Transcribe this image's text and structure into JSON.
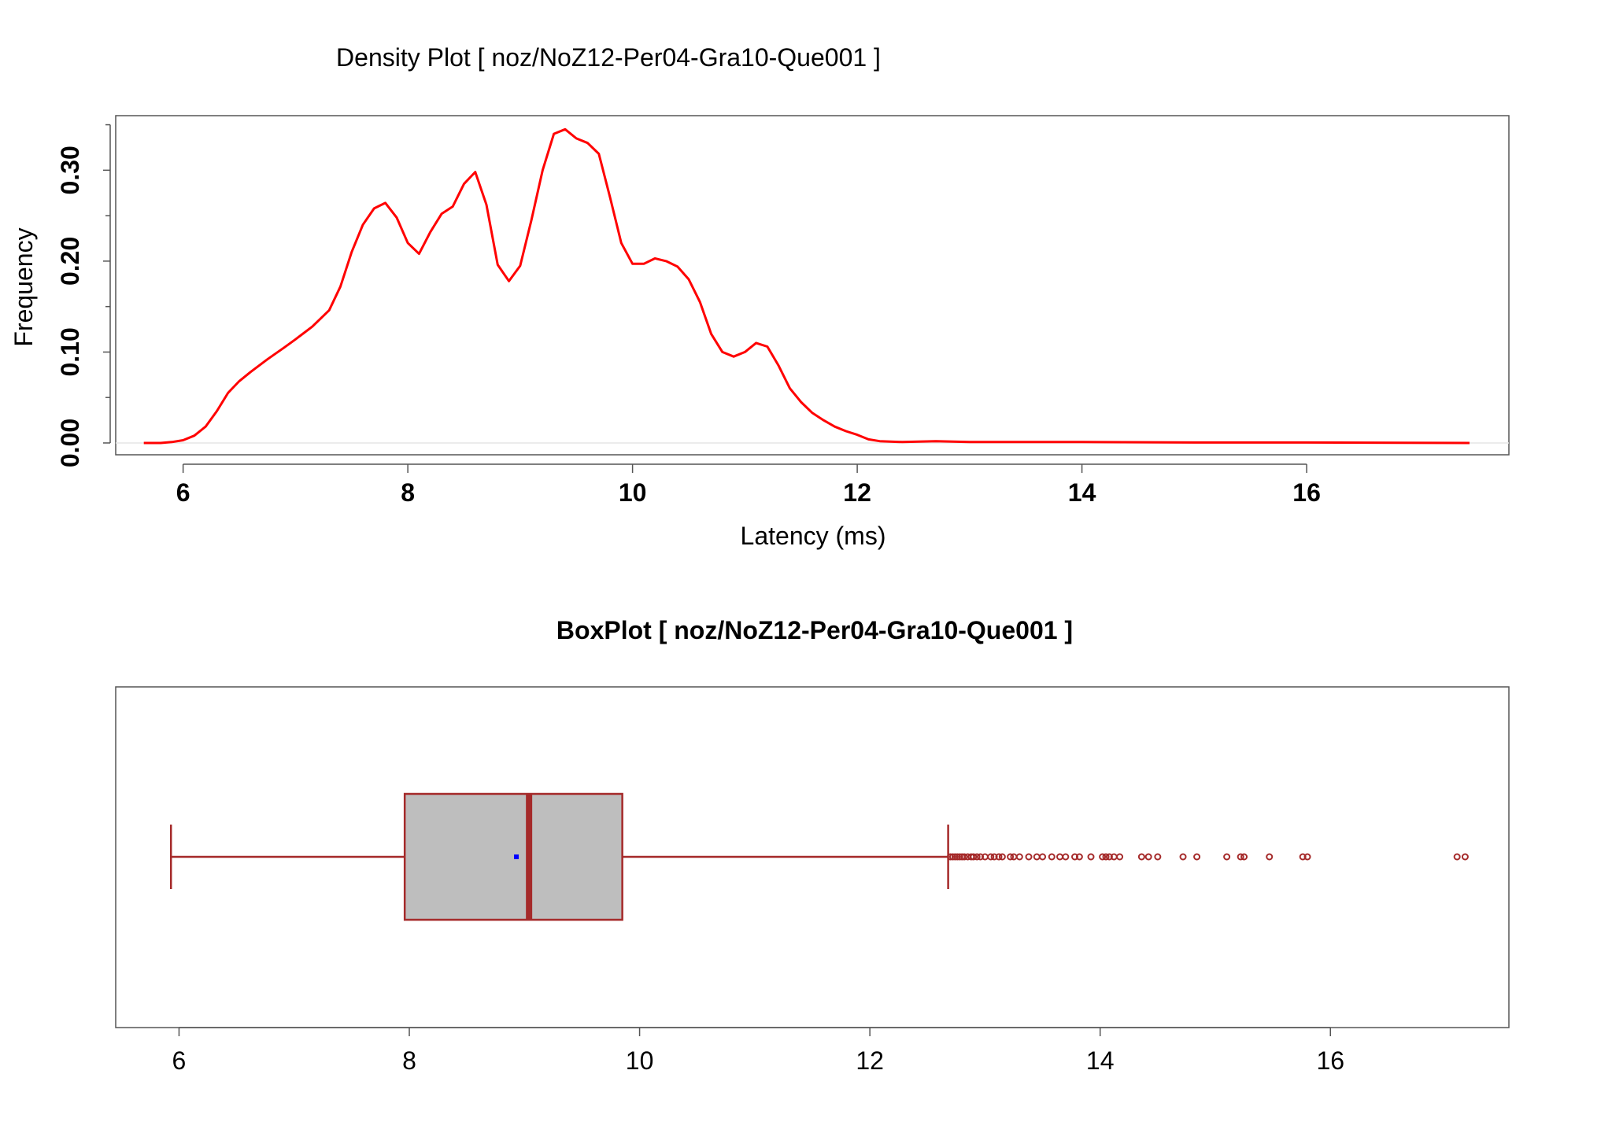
{
  "colors": {
    "density_line": "#ff0000",
    "box_border": "#a52a2a",
    "box_fill": "#bebebe",
    "mean_marker": "#0000ff",
    "outlier": "#a52a2a",
    "frame": "#555555",
    "zero_line": "#e6e6e6"
  },
  "chart_data": [
    {
      "type": "line",
      "title": "Density Plot [ noz/NoZ12-Per04-Gra10-Que001 ]",
      "xlabel": "Latency (ms)",
      "ylabel": "Frequency",
      "xlim": [
        5.4,
        17.8
      ],
      "ylim": [
        -0.013,
        0.36
      ],
      "x_ticks": [
        6,
        8,
        10,
        12,
        14,
        16
      ],
      "y_ticks": [
        0.0,
        0.1,
        0.2,
        0.3
      ],
      "y_tick_labels": [
        "0.00",
        "0.10",
        "0.20",
        "0.30"
      ],
      "y_minor_ticks": [
        0.05,
        0.15,
        0.25,
        0.35
      ],
      "series": [
        {
          "x": [
            5.65,
            5.8,
            5.9,
            6.0,
            6.1,
            6.2,
            6.3,
            6.4,
            6.5,
            6.6,
            6.75,
            6.9,
            7.0,
            7.15,
            7.3,
            7.4,
            7.5,
            7.6,
            7.7,
            7.8,
            7.9,
            8.0,
            8.1,
            8.2,
            8.3,
            8.4,
            8.5,
            8.6,
            8.7,
            8.8,
            8.9,
            9.0,
            9.1,
            9.2,
            9.3,
            9.4,
            9.5,
            9.6,
            9.7,
            9.8,
            9.9,
            10.0,
            10.1,
            10.2,
            10.3,
            10.4,
            10.5,
            10.6,
            10.7,
            10.8,
            10.9,
            11.0,
            11.1,
            11.2,
            11.3,
            11.4,
            11.5,
            11.6,
            11.7,
            11.8,
            11.9,
            12.0,
            12.1,
            12.2,
            12.4,
            12.7,
            13.0,
            13.5,
            14.0,
            15.0,
            16.0,
            17.45
          ],
          "y": [
            0.0,
            0.0,
            0.001,
            0.003,
            0.008,
            0.018,
            0.035,
            0.055,
            0.068,
            0.078,
            0.092,
            0.105,
            0.114,
            0.128,
            0.146,
            0.172,
            0.21,
            0.24,
            0.258,
            0.264,
            0.248,
            0.22,
            0.208,
            0.232,
            0.252,
            0.26,
            0.285,
            0.298,
            0.262,
            0.196,
            0.178,
            0.195,
            0.245,
            0.3,
            0.34,
            0.345,
            0.335,
            0.33,
            0.318,
            0.27,
            0.22,
            0.197,
            0.197,
            0.203,
            0.2,
            0.194,
            0.18,
            0.155,
            0.12,
            0.1,
            0.095,
            0.1,
            0.11,
            0.106,
            0.085,
            0.06,
            0.045,
            0.033,
            0.025,
            0.018,
            0.013,
            0.009,
            0.004,
            0.002,
            0.001,
            0.002,
            0.001,
            0.001,
            0.001,
            0.0005,
            0.0005,
            0.0
          ]
        }
      ]
    },
    {
      "type": "box",
      "title": "BoxPlot [ noz/NoZ12-Per04-Gra10-Que001 ]",
      "xlim": [
        5.45,
        17.55
      ],
      "x_ticks": [
        6,
        8,
        10,
        12,
        14,
        16
      ],
      "whisker_low": 5.93,
      "q1": 7.96,
      "median": 9.04,
      "q3": 9.85,
      "whisker_high": 12.68,
      "mean": 8.93,
      "outliers": [
        12.7,
        12.72,
        12.74,
        12.76,
        12.78,
        12.8,
        12.82,
        12.85,
        12.88,
        12.9,
        12.93,
        12.96,
        13.0,
        13.05,
        13.08,
        13.12,
        13.15,
        13.22,
        13.25,
        13.3,
        13.38,
        13.45,
        13.5,
        13.58,
        13.65,
        13.7,
        13.78,
        13.82,
        13.92,
        14.02,
        14.05,
        14.08,
        14.12,
        14.17,
        14.36,
        14.42,
        14.5,
        14.72,
        14.84,
        15.1,
        15.22,
        15.25,
        15.47,
        15.76,
        15.8,
        17.1,
        17.17
      ]
    }
  ]
}
